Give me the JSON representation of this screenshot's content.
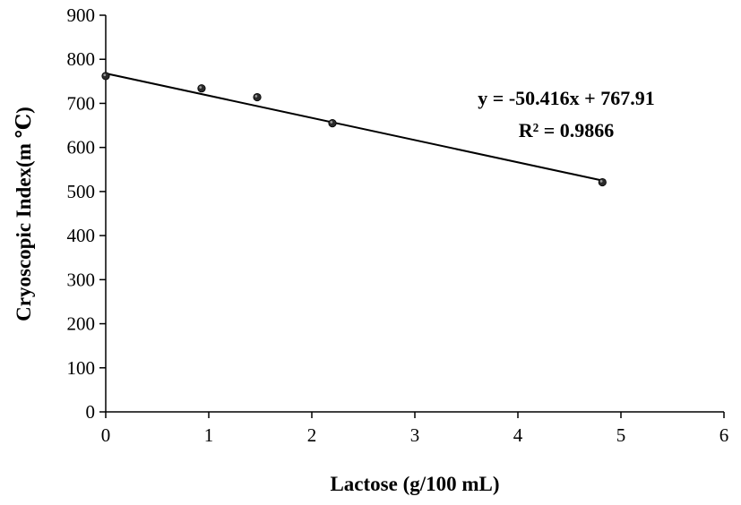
{
  "chart_data": {
    "type": "scatter",
    "title": "",
    "xlabel": "Lactose (g/100 mL)",
    "ylabel": "Cryoscopic Index(m ℃)",
    "xlim": [
      0,
      6
    ],
    "ylim": [
      0,
      900
    ],
    "x_ticks": [
      0,
      1,
      2,
      3,
      4,
      5,
      6
    ],
    "y_ticks": [
      0,
      100,
      200,
      300,
      400,
      500,
      600,
      700,
      800,
      900
    ],
    "grid": false,
    "legend": "none",
    "series": [
      {
        "points": [
          {
            "x": 0.0,
            "y": 762
          },
          {
            "x": 0.93,
            "y": 734
          },
          {
            "x": 1.47,
            "y": 714
          },
          {
            "x": 2.2,
            "y": 655
          },
          {
            "x": 4.82,
            "y": 521
          }
        ],
        "marker_color": "#2a2a2a"
      }
    ],
    "trendline": {
      "type": "linear",
      "slope": -50.416,
      "intercept": 767.91,
      "x_range": [
        0,
        4.82
      ],
      "color": "#000000"
    },
    "annotations": {
      "equation": "y = -50.416x + 767.91",
      "r_squared": "R² = 0.9866"
    }
  }
}
